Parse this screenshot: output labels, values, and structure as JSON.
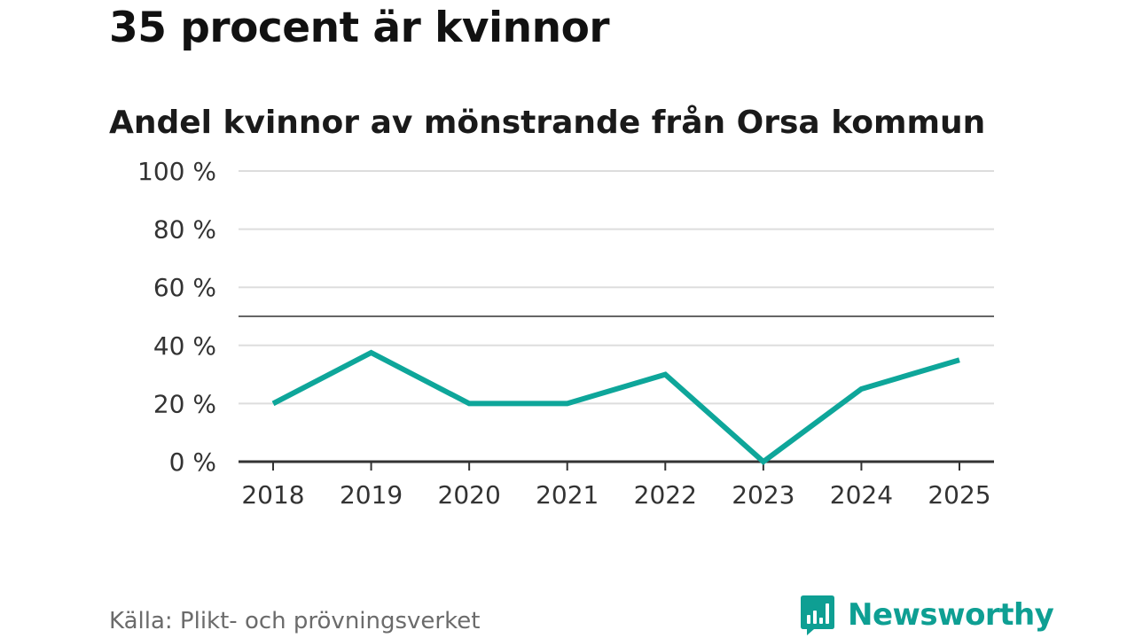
{
  "headline": "35 procent är kvinnor",
  "source": "Källa: Plikt- och prövningsverket",
  "brand": {
    "name": "Newsworthy",
    "icon": "bar-chart-speech-bubble-icon",
    "color": "#0e9f93"
  },
  "chart_data": {
    "type": "line",
    "title": "Andel kvinnor av mönstrande från Orsa kommun",
    "xlabel": "",
    "ylabel": "",
    "categories": [
      "2018",
      "2019",
      "2020",
      "2021",
      "2022",
      "2023",
      "2024",
      "2025"
    ],
    "series": [
      {
        "name": "Andel kvinnor",
        "values": [
          20,
          37.5,
          20,
          20,
          30,
          0,
          25,
          35
        ],
        "color": "#0ea69a"
      }
    ],
    "ylim": [
      0,
      100
    ],
    "yticks": [
      0,
      20,
      40,
      60,
      80,
      100
    ],
    "ytick_labels": [
      "0 %",
      "20 %",
      "40 %",
      "60 %",
      "80 %",
      "100 %"
    ],
    "reference_line": 50,
    "grid": true
  }
}
